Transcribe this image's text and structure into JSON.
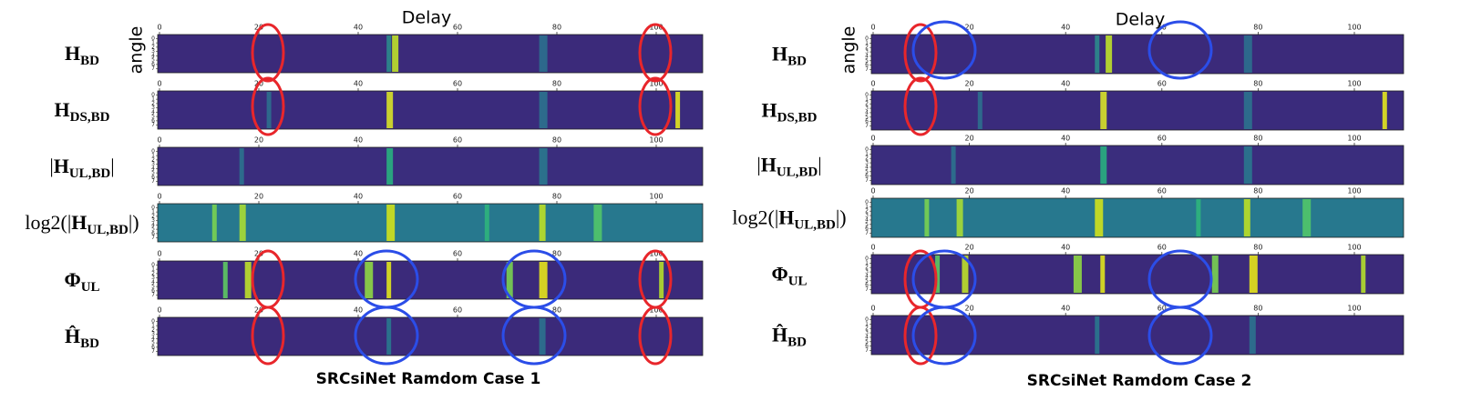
{
  "panels": [
    {
      "caption": "SRCsiNet Ramdom Case 1",
      "x_axis_title": "Delay",
      "y_axis_title": "angle",
      "xticks": [
        0,
        20,
        40,
        60,
        80,
        100
      ],
      "yticks": [
        0,
        1,
        2,
        3,
        4,
        5,
        6,
        7
      ],
      "rows": [
        {
          "base": "H",
          "sub": "BD"
        },
        {
          "base": "H",
          "sub": "DS,BD"
        },
        {
          "pre": "|",
          "base": "H",
          "sub": "UL,BD",
          "post": "|"
        },
        {
          "pre": "log2(|",
          "base": "H",
          "sub": "UL,BD",
          "post": "|)"
        },
        {
          "base": "Φ",
          "sub": "UL"
        },
        {
          "base": "Ĥ",
          "sub": "BD"
        }
      ]
    },
    {
      "caption": "SRCsiNet Ramdom Case 2",
      "x_axis_title": "Delay",
      "y_axis_title": "angle",
      "xticks": [
        0,
        20,
        40,
        60,
        80,
        100
      ],
      "yticks": [
        0,
        1,
        2,
        3,
        4,
        5,
        6,
        7
      ],
      "rows": [
        {
          "base": "H",
          "sub": "BD"
        },
        {
          "base": "H",
          "sub": "DS,BD"
        },
        {
          "pre": "|",
          "base": "H",
          "sub": "UL,BD",
          "post": "|"
        },
        {
          "pre": "log2(|",
          "base": "H",
          "sub": "UL,BD",
          "post": "|)"
        },
        {
          "base": "Φ",
          "sub": "UL"
        },
        {
          "base": "Ĥ",
          "sub": "BD"
        }
      ]
    }
  ]
}
